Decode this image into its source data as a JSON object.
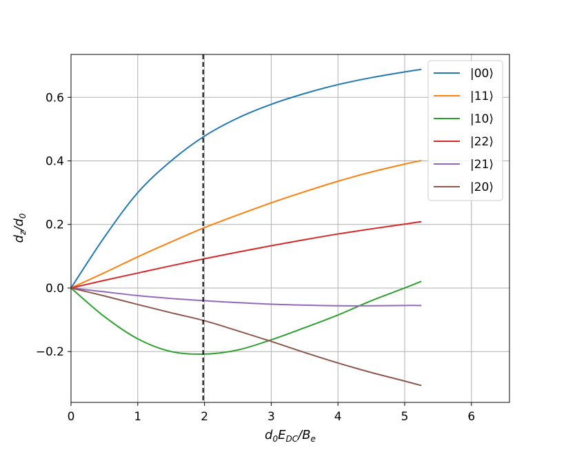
{
  "chart_data": {
    "type": "line",
    "xlabel": "d0EDC/Be",
    "ylabel": "dz/d0",
    "xlabel_parts": {
      "base": "d",
      "sub1": "0",
      "mid": "E",
      "sub2": "DC",
      "tail": "/B",
      "sub3": "e"
    },
    "ylabel_parts": {
      "base": "d",
      "sub1": "z",
      "mid": "/d",
      "sub2": "0"
    },
    "xlim": [
      0,
      6.57
    ],
    "ylim": [
      -0.36,
      0.735
    ],
    "x_ticks": [
      0,
      1,
      2,
      3,
      4,
      5,
      6
    ],
    "x_tick_labels": [
      "0",
      "1",
      "2",
      "3",
      "4",
      "5",
      "6"
    ],
    "y_ticks": [
      -0.2,
      0.0,
      0.2,
      0.4,
      0.6
    ],
    "y_tick_labels": [
      "−0.2",
      "0.0",
      "0.2",
      "0.4",
      "0.6"
    ],
    "grid": true,
    "legend_position": "top-right",
    "vline": {
      "x": 1.98,
      "style": "dashed",
      "color": "#000000"
    },
    "x": [
      0,
      0.5,
      1.0,
      1.5,
      2.0,
      2.5,
      3.0,
      3.5,
      4.0,
      4.5,
      5.0,
      5.25
    ],
    "series": [
      {
        "name": "|00⟩",
        "color": "#1f77b4",
        "values": [
          0.0,
          0.16,
          0.3,
          0.4,
          0.478,
          0.535,
          0.578,
          0.612,
          0.64,
          0.662,
          0.68,
          0.688
        ]
      },
      {
        "name": "|11⟩",
        "color": "#ff7f0e",
        "values": [
          0.0,
          0.048,
          0.098,
          0.145,
          0.19,
          0.23,
          0.268,
          0.303,
          0.336,
          0.365,
          0.39,
          0.401
        ]
      },
      {
        "name": "|10⟩",
        "color": "#2ca02c",
        "values": [
          0.0,
          -0.09,
          -0.16,
          -0.2,
          -0.208,
          -0.195,
          -0.163,
          -0.125,
          -0.085,
          -0.04,
          0.0,
          0.021
        ]
      },
      {
        "name": "|22⟩",
        "color": "#d62728",
        "values": [
          0.0,
          0.024,
          0.047,
          0.07,
          0.092,
          0.113,
          0.133,
          0.152,
          0.17,
          0.186,
          0.201,
          0.209
        ]
      },
      {
        "name": "|21⟩",
        "color": "#9467bd",
        "values": [
          0.0,
          -0.012,
          -0.024,
          -0.033,
          -0.04,
          -0.046,
          -0.051,
          -0.054,
          -0.056,
          -0.056,
          -0.055,
          -0.055
        ]
      },
      {
        "name": "|20⟩",
        "color": "#8c564b",
        "values": [
          0.0,
          -0.025,
          -0.052,
          -0.078,
          -0.103,
          -0.135,
          -0.168,
          -0.203,
          -0.236,
          -0.266,
          -0.293,
          -0.307
        ]
      }
    ]
  }
}
